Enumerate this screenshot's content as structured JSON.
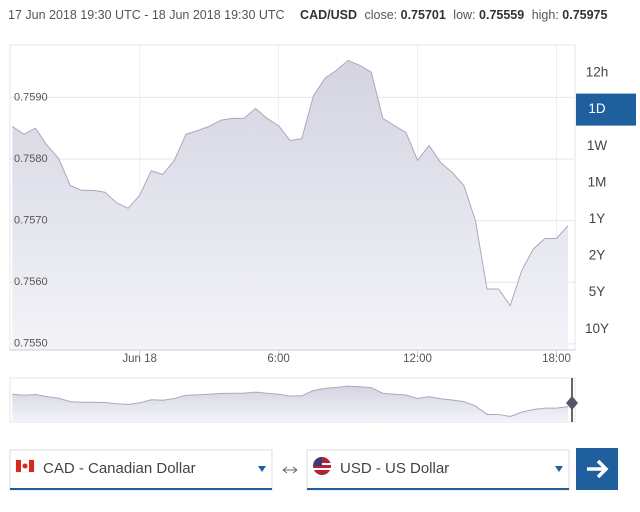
{
  "header": {
    "range": "17 Jun 2018 19:30 UTC - 18 Jun 2018 19:30 UTC",
    "pair": "CAD/USD",
    "close_label": "close:",
    "close": "0.75701",
    "low_label": "low:",
    "low": "0.75559",
    "high_label": "high:",
    "high": "0.75975"
  },
  "range_buttons": [
    "12h",
    "1D",
    "1W",
    "1M",
    "1Y",
    "2Y",
    "5Y",
    "10Y"
  ],
  "active_range": "1D",
  "converter": {
    "from": "CAD - Canadian Dollar",
    "to": "USD - US Dollar"
  },
  "chart_data": {
    "type": "area",
    "color": "#a9a9bf",
    "x": [
      -5.5,
      -5,
      -4.5,
      -4,
      -3.5,
      -3,
      -2.5,
      -2,
      -1.5,
      -1,
      -0.5,
      0,
      0.5,
      1,
      1.5,
      2,
      2.5,
      3,
      3.5,
      4,
      4.5,
      5,
      5.5,
      6,
      6.5,
      7,
      7.5,
      8,
      8.5,
      9,
      9.5,
      10,
      10.5,
      11,
      11.5,
      12,
      12.5,
      13,
      13.5,
      14,
      14.5,
      15,
      15.5,
      16,
      16.5,
      17,
      17.5,
      18,
      18.5
    ],
    "values": [
      0.75853,
      0.7584,
      0.7585,
      0.75822,
      0.75801,
      0.75757,
      0.75749,
      0.75749,
      0.75746,
      0.75729,
      0.7572,
      0.75741,
      0.75781,
      0.75775,
      0.75798,
      0.7584,
      0.75846,
      0.75853,
      0.75863,
      0.75866,
      0.75866,
      0.75882,
      0.75866,
      0.75854,
      0.7583,
      0.75833,
      0.75902,
      0.75931,
      0.75944,
      0.7596,
      0.75952,
      0.75941,
      0.75866,
      0.75854,
      0.75843,
      0.75798,
      0.75822,
      0.75794,
      0.75778,
      0.75757,
      0.757,
      0.75589,
      0.75589,
      0.75562,
      0.75619,
      0.75654,
      0.75671,
      0.75671,
      0.75692
    ],
    "xlim": [
      -5.6,
      18.8
    ],
    "xticks": [
      {
        "value": 0,
        "label": "Jun 18"
      },
      {
        "value": 6,
        "label": "6:00"
      },
      {
        "value": 12,
        "label": "12:00"
      },
      {
        "value": 18,
        "label": "18:00"
      }
    ],
    "ylim": [
      0.7549,
      0.75985
    ],
    "yticks": [
      {
        "value": 0.755,
        "label": "0.7550"
      },
      {
        "value": 0.756,
        "label": "0.7560"
      },
      {
        "value": 0.757,
        "label": "0.7570"
      },
      {
        "value": 0.758,
        "label": "0.7580"
      },
      {
        "value": 0.759,
        "label": "0.7590"
      }
    ],
    "grid": true
  }
}
